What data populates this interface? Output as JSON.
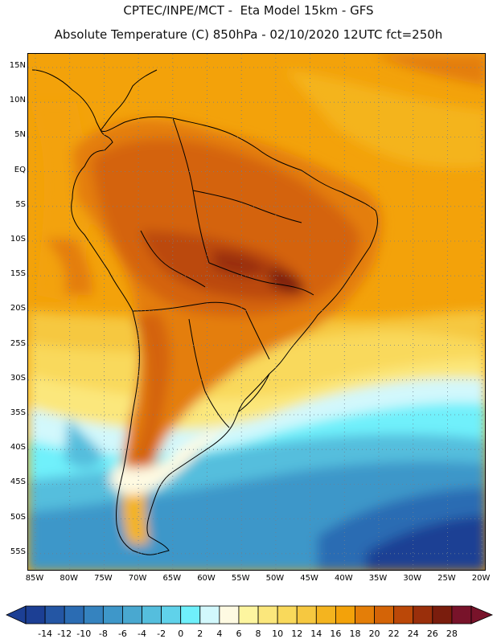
{
  "header": {
    "title_line1": "CPTEC/INPE/MCT -  Eta Model 15km - GFS",
    "title_line2": "Absolute Temperature (C) 850hPa - 02/10/2020 12UTC fct=250h"
  },
  "map": {
    "lat_labels": [
      "15N",
      "10N",
      "5N",
      "EQ",
      "5S",
      "10S",
      "15S",
      "20S",
      "25S",
      "30S",
      "35S",
      "40S",
      "45S",
      "50S",
      "55S"
    ],
    "lon_labels": [
      "85W",
      "80W",
      "75W",
      "70W",
      "65W",
      "60W",
      "55W",
      "50W",
      "45W",
      "40W",
      "35W",
      "30W",
      "25W",
      "20W"
    ]
  },
  "colorbar": {
    "labels": [
      "-14",
      "-12",
      "-10",
      "-8",
      "-6",
      "-4",
      "-2",
      "0",
      "2",
      "4",
      "6",
      "8",
      "10",
      "12",
      "14",
      "16",
      "18",
      "20",
      "22",
      "24",
      "26",
      "28"
    ],
    "colors": [
      "#1c3f94",
      "#2456a4",
      "#2b6cb3",
      "#3583bf",
      "#3e97c9",
      "#49a8d0",
      "#55bedd",
      "#60d2ea",
      "#6ff0fb",
      "#d2f8fc",
      "#fefae2",
      "#fdf59f",
      "#fbe77c",
      "#f9d95b",
      "#f6c840",
      "#f4b41f",
      "#f3a20a",
      "#e47e08",
      "#d46407",
      "#bb4808",
      "#9a2f0b",
      "#7a1d0d",
      "#78132a"
    ]
  }
}
